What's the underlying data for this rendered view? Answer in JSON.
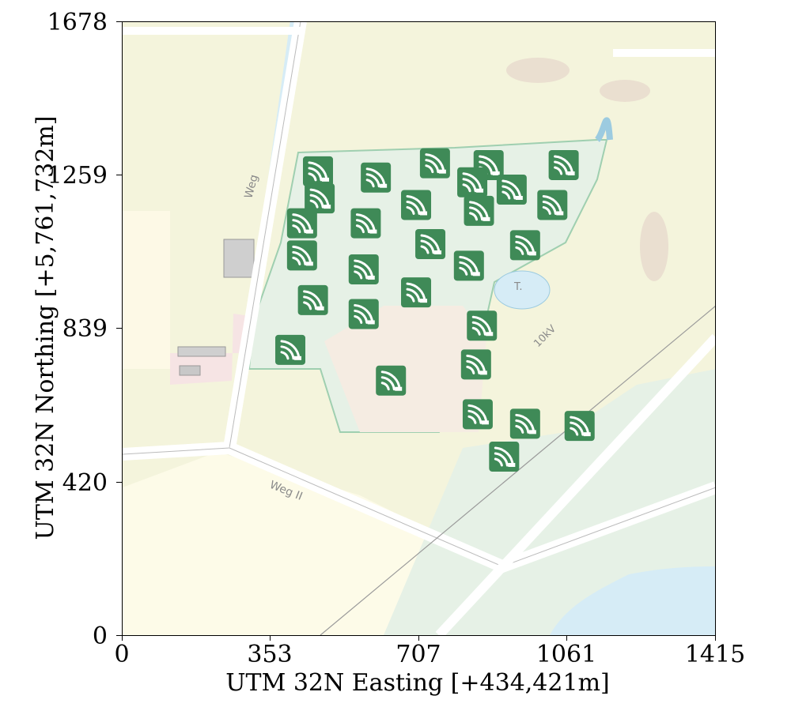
{
  "map": {
    "x_axis": {
      "title": "UTM 32N Easting [+434,421m]",
      "range": [
        0,
        1415
      ],
      "ticks": [
        "0",
        "353",
        "707",
        "1061",
        "1415"
      ]
    },
    "y_axis": {
      "title": "UTM 32N Northing [+5,761,732m]",
      "range": [
        0,
        1678
      ],
      "ticks": [
        "0",
        "420",
        "839",
        "1259",
        "1678"
      ]
    },
    "labels": {
      "road_weg": "Weg",
      "road_weg_ii": "Weg II",
      "power_line": "10kV",
      "pond": "T."
    },
    "marker_icon": "sensor-signal-icon",
    "colors": {
      "marker_fill": "#3f8a57",
      "marker_glyph": "#ffffff",
      "farmland": "#f4f4dc",
      "meadow": "#e6f1e6",
      "water": "#d6ecf6",
      "road": "#ffffff"
    },
    "markers": [
      {
        "x": 466,
        "y": 1268
      },
      {
        "x": 604,
        "y": 1251
      },
      {
        "x": 745,
        "y": 1290
      },
      {
        "x": 873,
        "y": 1285
      },
      {
        "x": 1052,
        "y": 1285
      },
      {
        "x": 470,
        "y": 1194
      },
      {
        "x": 834,
        "y": 1238
      },
      {
        "x": 928,
        "y": 1218
      },
      {
        "x": 700,
        "y": 1176
      },
      {
        "x": 850,
        "y": 1160
      },
      {
        "x": 1025,
        "y": 1176
      },
      {
        "x": 428,
        "y": 1126
      },
      {
        "x": 580,
        "y": 1126
      },
      {
        "x": 734,
        "y": 1069
      },
      {
        "x": 960,
        "y": 1066
      },
      {
        "x": 428,
        "y": 1038
      },
      {
        "x": 575,
        "y": 1000
      },
      {
        "x": 826,
        "y": 1010
      },
      {
        "x": 454,
        "y": 916
      },
      {
        "x": 700,
        "y": 937
      },
      {
        "x": 575,
        "y": 878
      },
      {
        "x": 857,
        "y": 846
      },
      {
        "x": 400,
        "y": 780
      },
      {
        "x": 843,
        "y": 740
      },
      {
        "x": 640,
        "y": 696
      },
      {
        "x": 847,
        "y": 604
      },
      {
        "x": 960,
        "y": 578
      },
      {
        "x": 1090,
        "y": 572
      },
      {
        "x": 910,
        "y": 488
      }
    ]
  }
}
